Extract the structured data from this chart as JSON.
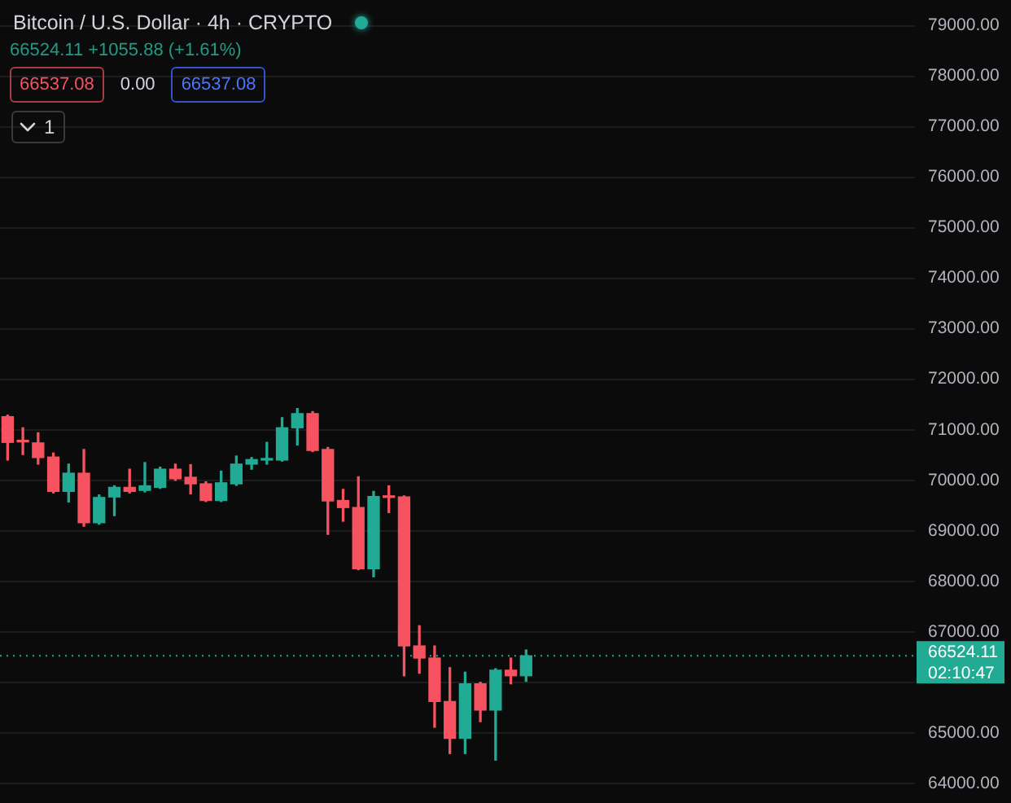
{
  "chart_data": {
    "type": "candlestick",
    "title": "Bitcoin / U.S. Dollar · 4h · CRYPTO",
    "subtitle": "66524.11 +1055.88 (+1.61%)",
    "annotations": [
      "66537.08",
      "0.00",
      "66537.08",
      "1",
      "02:10:47"
    ],
    "categories": [
      null,
      null,
      null,
      null,
      null,
      null,
      null,
      null,
      null,
      null,
      null,
      null,
      null,
      null,
      null,
      null,
      null,
      null,
      null,
      null,
      null,
      null,
      null,
      null,
      null,
      null,
      null,
      null,
      null,
      null,
      null,
      null,
      null,
      null,
      null,
      null,
      null,
      null,
      null,
      null,
      null,
      null,
      null,
      null,
      null,
      null,
      null,
      null,
      null,
      null,
      null,
      null,
      null,
      null,
      null,
      null,
      null,
      null,
      null,
      null
    ],
    "ohlc": [
      [
        71260,
        71290,
        70400,
        70750
      ],
      [
        70780,
        71040,
        70510,
        70760
      ],
      [
        70740,
        70940,
        70320,
        70450
      ],
      [
        70460,
        70540,
        69750,
        69780
      ],
      [
        69780,
        70320,
        69570,
        70140
      ],
      [
        70140,
        70610,
        69090,
        69160
      ],
      [
        69160,
        69710,
        69130,
        69660
      ],
      [
        69670,
        69890,
        69300,
        69860
      ],
      [
        69860,
        70220,
        69750,
        69780
      ],
      [
        69800,
        70350,
        69770,
        69890
      ],
      [
        69860,
        70260,
        69840,
        70220
      ],
      [
        70220,
        70320,
        70000,
        70030
      ],
      [
        70060,
        70310,
        69730,
        69930
      ],
      [
        69930,
        69970,
        69580,
        69600
      ],
      [
        69600,
        70180,
        69580,
        69950
      ],
      [
        69930,
        70480,
        69900,
        70320
      ],
      [
        70320,
        70450,
        70220,
        70410
      ],
      [
        70400,
        70750,
        70320,
        70420
      ],
      [
        70400,
        71240,
        70380,
        71040
      ],
      [
        71040,
        71420,
        70700,
        71320
      ],
      [
        71320,
        71360,
        70570,
        70590
      ],
      [
        70610,
        70650,
        68930,
        69590
      ],
      [
        69600,
        69820,
        69190,
        69460
      ],
      [
        69460,
        70070,
        68230,
        68250
      ],
      [
        68250,
        69780,
        68090,
        69680
      ],
      [
        69680,
        69890,
        69360,
        69660
      ],
      [
        69670,
        69690,
        66130,
        66720
      ],
      [
        66720,
        67120,
        66180,
        66480
      ],
      [
        66480,
        66720,
        65110,
        65620
      ],
      [
        65620,
        66290,
        64590,
        64890
      ],
      [
        64890,
        66200,
        64590,
        65970
      ],
      [
        65970,
        66000,
        65220,
        65450
      ],
      [
        65450,
        66270,
        64460,
        66240
      ],
      [
        66240,
        66480,
        65970,
        66130
      ],
      [
        66130,
        66640,
        66020,
        66524.11
      ],
      null,
      null,
      null,
      null,
      null,
      null,
      null,
      null,
      null,
      null,
      null,
      null,
      null,
      null,
      null,
      null,
      null,
      null,
      null,
      null,
      null,
      null,
      null,
      null,
      null
    ],
    "colors": [
      "#f7525f",
      "#f7525f",
      "#f7525f",
      "#f7525f",
      "#22ab94",
      "#f7525f",
      "#22ab94",
      "#22ab94",
      "#f7525f",
      "#22ab94",
      "#22ab94",
      "#f7525f",
      "#f7525f",
      "#f7525f",
      "#22ab94",
      "#22ab94",
      "#22ab94",
      "#22ab94",
      "#22ab94",
      "#22ab94",
      "#f7525f",
      "#f7525f",
      "#f7525f",
      "#f7525f",
      "#22ab94",
      "#f7525f",
      "#f7525f",
      "#f7525f",
      "#f7525f",
      "#f7525f",
      "#22ab94",
      "#f7525f",
      "#22ab94",
      "#f7525f",
      "#22ab94",
      null,
      null,
      null,
      null,
      null,
      null,
      null,
      null,
      null,
      null,
      null,
      null,
      null,
      null,
      null,
      null,
      null,
      null,
      null,
      null,
      null,
      null,
      null,
      null,
      null
    ],
    "ylim": [
      63610,
      79510
    ],
    "yticks": [
      {
        "value": 64000,
        "label": "64000.00"
      },
      {
        "value": 65000,
        "label": "65000.00"
      },
      {
        "value": 66000,
        "label": null
      },
      {
        "value": 67000,
        "label": "67000.00"
      },
      {
        "value": 68000,
        "label": "68000.00"
      },
      {
        "value": 69000,
        "label": "69000.00"
      },
      {
        "value": 70000,
        "label": "70000.00"
      },
      {
        "value": 71000,
        "label": "71000.00"
      },
      {
        "value": 72000,
        "label": "72000.00"
      },
      {
        "value": 73000,
        "label": "73000.00"
      },
      {
        "value": 74000,
        "label": "74000.00"
      },
      {
        "value": 75000,
        "label": "75000.00"
      },
      {
        "value": 76000,
        "label": "76000.00"
      },
      {
        "value": 77000,
        "label": "77000.00"
      },
      {
        "value": 78000,
        "label": "78000.00"
      },
      {
        "value": 79000,
        "label": "79000.00"
      }
    ],
    "grid": "y",
    "tick_labels": "y",
    "ref_lines": [
      {
        "axis": "y",
        "value": 66524.11,
        "label": "66524.11",
        "color": "#22ab94",
        "line_style": "dotted"
      }
    ]
  }
}
